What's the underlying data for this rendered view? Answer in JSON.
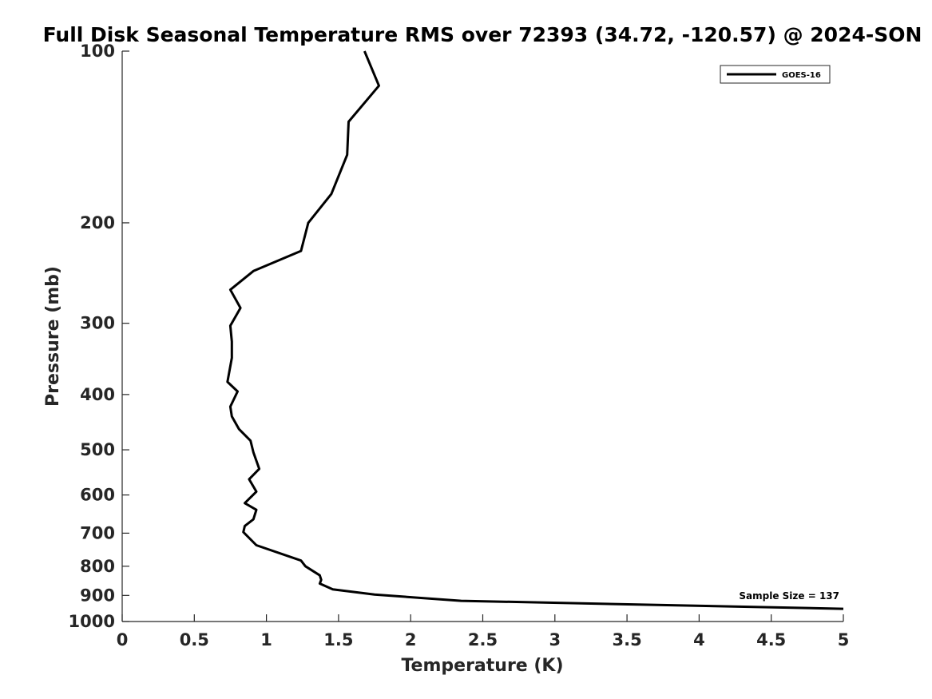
{
  "chart_data": {
    "type": "line",
    "title": "Full Disk Seasonal Temperature RMS over 72393 (34.72, -120.57) @ 2024-SON",
    "xlabel": "Temperature (K)",
    "ylabel": "Pressure (mb)",
    "xlim": [
      0,
      5
    ],
    "ylim": [
      100,
      1000
    ],
    "y_scale": "log",
    "y_reversed": true,
    "x_ticks": [
      "0",
      "0.5",
      "1",
      "1.5",
      "2",
      "2.5",
      "3",
      "3.5",
      "4",
      "4.5",
      "5"
    ],
    "y_ticks": [
      "100",
      "200",
      "300",
      "400",
      "500",
      "600",
      "700",
      "800",
      "900",
      "1000"
    ],
    "grid": false,
    "legend": {
      "position": "top-right",
      "entries": [
        "GOES-16"
      ]
    },
    "annotation": "Sample Size = 137",
    "series": [
      {
        "name": "GOES-16",
        "color": "#000000",
        "x": [
          1.68,
          1.78,
          1.57,
          1.56,
          1.45,
          1.29,
          1.24,
          0.91,
          0.75,
          0.82,
          0.75,
          0.76,
          0.76,
          0.73,
          0.8,
          0.75,
          0.76,
          0.81,
          0.89,
          0.91,
          0.95,
          0.88,
          0.93,
          0.85,
          0.93,
          0.91,
          0.85,
          0.84,
          0.93,
          1.24,
          1.27,
          1.37,
          1.38,
          1.37,
          1.46,
          1.75,
          2.35,
          5.0
        ],
        "y": [
          100,
          115,
          133,
          152,
          178,
          200,
          224,
          243,
          262,
          282,
          303,
          323,
          345,
          380,
          395,
          420,
          437,
          460,
          482,
          505,
          540,
          563,
          592,
          620,
          637,
          662,
          680,
          697,
          735,
          782,
          800,
          830,
          845,
          858,
          878,
          897,
          920,
          950
        ]
      }
    ]
  }
}
